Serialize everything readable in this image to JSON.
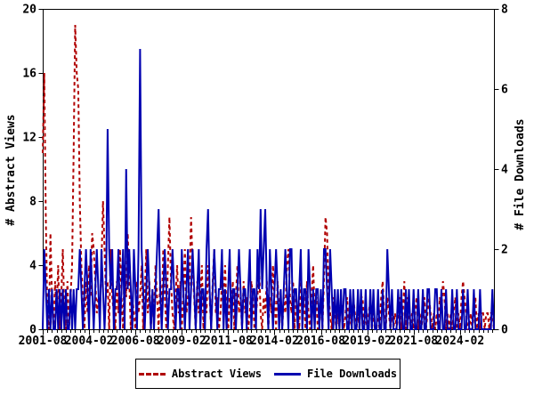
{
  "chart": {
    "left_axis_title": "# Abstract Views",
    "right_axis_title": "# File Downloads",
    "colors": {
      "abstract_views": "#b00000",
      "file_downloads": "#0000b0",
      "axis": "#000000",
      "background": "#ffffff"
    }
  },
  "legend": {
    "items": [
      {
        "label": "Abstract Views",
        "style": "dashed",
        "color": "#b00000"
      },
      {
        "label": "File Downloads",
        "style": "solid",
        "color": "#0000b0"
      }
    ]
  },
  "chart_data": {
    "type": "line",
    "title": "",
    "x_start": "2001-08",
    "x_interval": "monthly",
    "x_ticks": [
      {
        "month": 0,
        "label": "2001-08"
      },
      {
        "month": 30,
        "label": "2004-02"
      },
      {
        "month": 60,
        "label": "2006-08"
      },
      {
        "month": 90,
        "label": "2009-02"
      },
      {
        "month": 120,
        "label": "2011-08"
      },
      {
        "month": 150,
        "label": "2014-02"
      },
      {
        "month": 180,
        "label": "2016-08"
      },
      {
        "month": 210,
        "label": "2019-02"
      },
      {
        "month": 240,
        "label": "2021-08"
      },
      {
        "month": 270,
        "label": "2024-02"
      }
    ],
    "minor_tick_every_months": 3,
    "left_ylabel": "# Abstract Views",
    "right_ylabel": "# File Downloads",
    "left_ylim": [
      0,
      20
    ],
    "right_ylim": [
      0,
      8
    ],
    "left_yticks": [
      0,
      4,
      8,
      12,
      16,
      20
    ],
    "right_yticks": [
      0,
      2,
      4,
      6,
      8
    ],
    "grid": false,
    "legend_position": "bottom-center",
    "series": [
      {
        "name": "Abstract Views",
        "axis": "left",
        "color": "#b00000",
        "line": "dashed",
        "values": [
          11,
          16,
          7,
          1,
          0,
          6,
          2,
          0,
          3,
          1,
          4,
          0,
          2,
          5,
          1,
          0,
          3,
          0,
          2,
          4,
          11,
          19,
          16,
          15,
          8,
          4,
          2,
          0,
          3,
          1,
          4,
          2,
          6,
          5,
          3,
          1,
          2,
          1,
          4,
          8,
          5,
          2,
          3,
          0,
          5,
          2,
          1,
          0,
          3,
          1,
          5,
          2,
          0,
          4,
          2,
          6,
          3,
          0,
          2,
          1,
          0,
          3,
          1,
          2,
          4,
          0,
          2,
          5,
          1,
          3,
          0,
          2,
          1,
          4,
          2,
          0,
          3,
          1,
          5,
          2,
          0,
          4,
          7,
          3,
          1,
          0,
          2,
          4,
          1,
          3,
          0,
          2,
          5,
          1,
          2,
          3,
          7,
          4,
          2,
          0,
          3,
          1,
          2,
          4,
          0,
          2,
          1,
          4,
          2,
          0,
          3,
          5,
          1,
          2,
          0,
          1,
          3,
          2,
          4,
          1,
          0,
          2,
          1,
          3,
          0,
          2,
          4,
          1,
          2,
          0,
          3,
          1,
          2,
          0,
          1,
          3,
          2,
          0,
          1,
          2,
          4,
          1,
          0,
          2,
          1,
          3,
          0,
          2,
          1,
          4,
          2,
          0,
          3,
          1,
          2,
          0,
          2,
          1,
          4,
          5,
          2,
          1,
          3,
          0,
          2,
          1,
          0,
          3,
          1,
          2,
          0,
          3,
          1,
          0,
          2,
          4,
          1,
          2,
          0,
          1,
          2,
          0,
          3,
          7,
          6,
          2,
          1,
          0,
          2,
          1,
          0,
          1,
          0,
          2,
          1,
          0,
          1,
          2,
          0,
          1,
          0,
          2,
          1,
          0,
          1,
          0,
          2,
          2,
          0,
          1,
          0,
          1,
          2,
          0,
          1,
          0,
          0,
          1,
          0,
          2,
          3,
          1,
          0,
          2,
          1,
          0,
          1,
          0,
          1,
          0,
          1,
          2,
          0,
          1,
          3,
          0,
          2,
          1,
          0,
          1,
          0,
          1,
          2,
          0,
          1,
          0,
          1,
          2,
          0,
          1,
          2,
          1,
          0,
          1,
          0,
          1,
          0,
          2,
          1,
          3,
          2,
          0,
          1,
          0,
          1,
          0,
          1,
          2,
          0,
          1,
          0,
          2,
          3,
          2,
          1,
          0,
          0,
          1,
          0,
          1,
          2,
          0,
          1,
          0,
          1,
          1,
          0,
          1,
          1,
          0,
          1,
          1,
          0
        ]
      },
      {
        "name": "File Downloads",
        "axis": "right",
        "color": "#0000b0",
        "line": "solid",
        "values": [
          0,
          2,
          1,
          0,
          1,
          0,
          1,
          0,
          0,
          1,
          0,
          1,
          0,
          1,
          0,
          1,
          0,
          0,
          1,
          0,
          1,
          0,
          1,
          1,
          2,
          1,
          0,
          1,
          2,
          1,
          0,
          2,
          1,
          0,
          1,
          2,
          1,
          0,
          2,
          1,
          0,
          1,
          5,
          2,
          1,
          2,
          0,
          1,
          1,
          2,
          0,
          1,
          2,
          0,
          4,
          1,
          2,
          1,
          0,
          2,
          1,
          0,
          2,
          7,
          2,
          1,
          0,
          1,
          2,
          1,
          0,
          1,
          0,
          1,
          2,
          3,
          1,
          0,
          1,
          2,
          1,
          0,
          1,
          1,
          2,
          1,
          0,
          1,
          1,
          0,
          2,
          1,
          0,
          1,
          2,
          0,
          1,
          2,
          1,
          0,
          1,
          2,
          0,
          1,
          1,
          0,
          2,
          3,
          1,
          0,
          1,
          2,
          1,
          0,
          1,
          1,
          2,
          0,
          1,
          0,
          1,
          2,
          0,
          1,
          1,
          0,
          1,
          2,
          1,
          0,
          1,
          1,
          0,
          1,
          2,
          0,
          1,
          1,
          0,
          2,
          1,
          3,
          1,
          2,
          3,
          1,
          0,
          2,
          1,
          0,
          1,
          2,
          1,
          0,
          1,
          0,
          1,
          2,
          1,
          0,
          2,
          2,
          0,
          1,
          1,
          0,
          1,
          2,
          0,
          1,
          1,
          0,
          2,
          1,
          0,
          1,
          0,
          1,
          1,
          0,
          1,
          0,
          2,
          2,
          1,
          0,
          2,
          1,
          0,
          1,
          0,
          1,
          0,
          1,
          0,
          1,
          1,
          0,
          0,
          1,
          0,
          1,
          0,
          0,
          1,
          0,
          1,
          0,
          0,
          1,
          0,
          0,
          1,
          0,
          1,
          0,
          0,
          1,
          0,
          0,
          1,
          0,
          0,
          2,
          1,
          0,
          1,
          0,
          0,
          0,
          1,
          0,
          1,
          0,
          0,
          1,
          0,
          1,
          0,
          0,
          1,
          0,
          0,
          1,
          0,
          0,
          1,
          0,
          0,
          1,
          1,
          0,
          0,
          0,
          1,
          1,
          0,
          0,
          1,
          0,
          0,
          1,
          0,
          0,
          0,
          1,
          0,
          0,
          1,
          0,
          0,
          0,
          1,
          0,
          0,
          1,
          0,
          0,
          0,
          1,
          0,
          0,
          0,
          1,
          0,
          0,
          0,
          0,
          0,
          0,
          0,
          1,
          0
        ]
      }
    ]
  }
}
